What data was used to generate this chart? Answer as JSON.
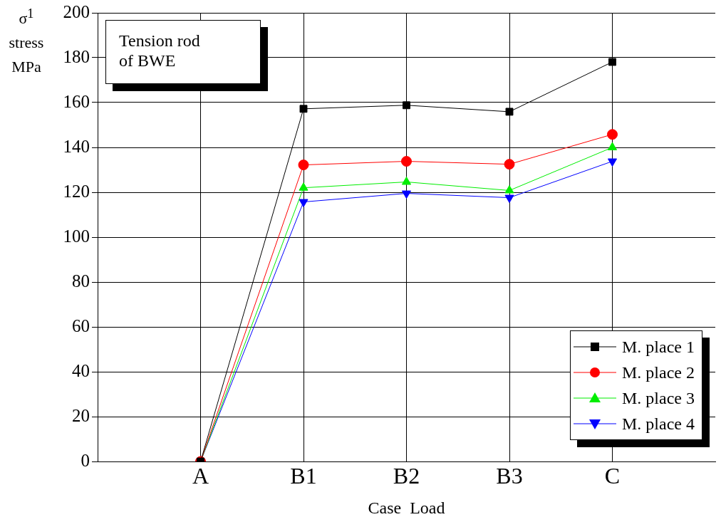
{
  "chart_data": {
    "type": "line",
    "xlabel": "Case  Load",
    "ylabel": "σ$^{1}$ stress MPa",
    "categories": [
      "A",
      "B1",
      "B2",
      "B3",
      "C"
    ],
    "series": [
      {
        "name": "M. place 1",
        "color": "#000000",
        "marker": "square",
        "values": [
          0,
          157.2,
          158.8,
          155.9,
          178.1
        ]
      },
      {
        "name": "M. place 2",
        "color": "#ff0000",
        "marker": "circle",
        "values": [
          0,
          132.2,
          133.8,
          132.5,
          145.8
        ]
      },
      {
        "name": "M. place 3",
        "color": "#00ee00",
        "marker": "triangle",
        "values": [
          0,
          122,
          124.6,
          120.8,
          140
        ]
      },
      {
        "name": "M. place 4",
        "color": "#0000ff",
        "marker": "triangle-down",
        "values": [
          0,
          115.7,
          119.5,
          117.6,
          133.8
        ]
      }
    ],
    "ylim": [
      0,
      200
    ],
    "yticks": [
      0,
      20,
      40,
      60,
      80,
      100,
      120,
      140,
      160,
      180,
      200
    ],
    "grid": true,
    "legend": "bottom right",
    "annotations": [
      "Tension rod\nof BWE"
    ]
  }
}
